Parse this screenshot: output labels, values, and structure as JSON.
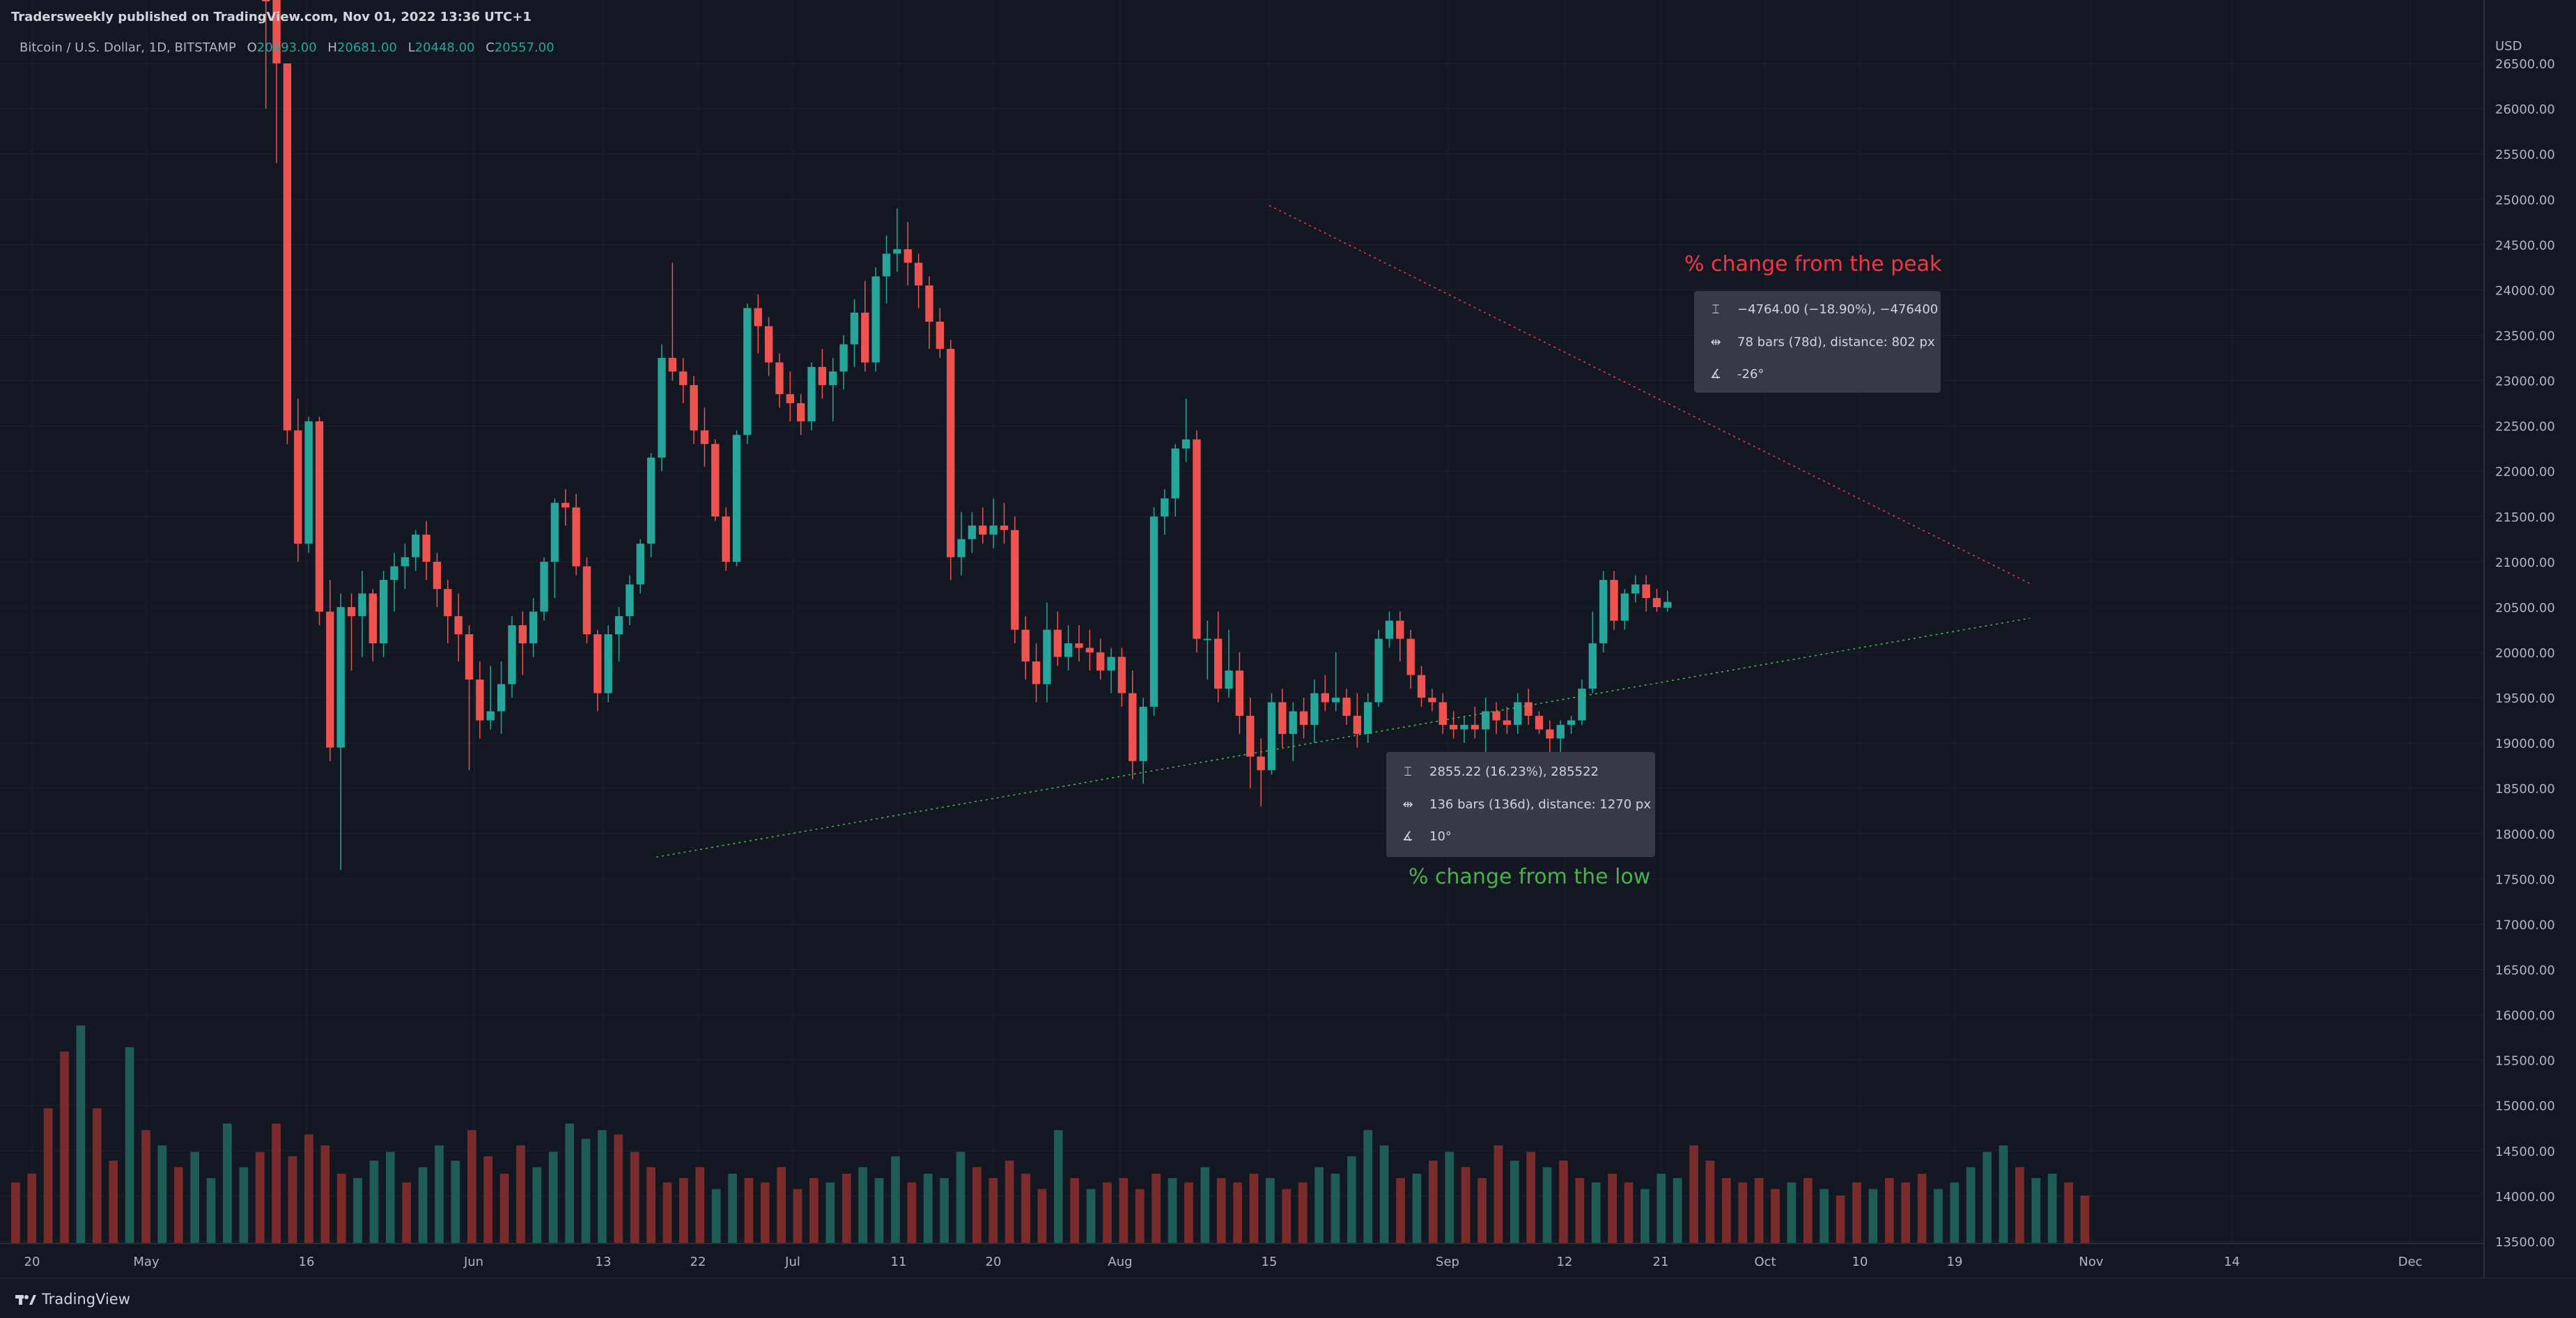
{
  "header": {
    "published": "Tradersweekly published on TradingView.com, Nov 01, 2022 13:36 UTC+1"
  },
  "legend": {
    "symbol": "Bitcoin / U.S. Dollar, 1D, BITSTAMP",
    "o_label": "O",
    "o": "20493.00",
    "h_label": "H",
    "h": "20681.00",
    "l_label": "L",
    "l": "20448.00",
    "c_label": "C",
    "c": "20557.00"
  },
  "annotations": {
    "peak_label": "% change from the peak",
    "low_label": "% change from the low",
    "peak_tooltip": [
      "−4764.00 (−18.90%), −476400",
      "78 bars (78d), distance: 802 px",
      "-26°"
    ],
    "low_tooltip": [
      "2855.22 (16.23%), 285522",
      "136 bars (136d), distance: 1270 px",
      "10°"
    ]
  },
  "colors": {
    "up": "#26a69a",
    "down": "#ef5350",
    "peak_note": "#f23645",
    "low_note": "#4caf50",
    "background": "#131722"
  },
  "footer": {
    "brand": "TradingView"
  },
  "chart_data": {
    "type": "candlestick",
    "symbol": "Bitcoin / U.S. Dollar",
    "interval": "1D",
    "exchange": "BITSTAMP",
    "currency": "USD",
    "ylim": [
      13100,
      27200
    ],
    "y_ticks": [
      "26500.00",
      "26000.00",
      "25500.00",
      "25000.00",
      "24500.00",
      "24000.00",
      "23500.00",
      "23000.00",
      "22500.00",
      "22000.00",
      "21500.00",
      "21000.00",
      "20500.00",
      "20000.00",
      "19500.00",
      "19000.00",
      "18500.00",
      "18000.00",
      "17500.00",
      "17000.00",
      "16500.00",
      "16000.00",
      "15500.00",
      "15000.00",
      "14500.00",
      "14000.00",
      "13500.00"
    ],
    "x_ticks": [
      "20",
      "May",
      "16",
      "Jun",
      "13",
      "22",
      "Jul",
      "11",
      "20",
      "Aug",
      "15",
      "Sep",
      "12",
      "21",
      "Oct",
      "10",
      "19",
      "Nov",
      "14",
      "Dec"
    ],
    "start_date": "2022-05-11",
    "candles": [
      [
        28800,
        28800,
        26000,
        27800
      ],
      [
        28800,
        28800,
        25400,
        26500
      ],
      [
        26500,
        26500,
        22300,
        22450
      ],
      [
        22450,
        22800,
        21000,
        21200
      ],
      [
        21200,
        22600,
        21100,
        22550
      ],
      [
        22550,
        22600,
        20300,
        20450
      ],
      [
        20450,
        20800,
        18800,
        18950
      ],
      [
        18950,
        20650,
        17600,
        20500
      ],
      [
        20500,
        20650,
        19800,
        20400
      ],
      [
        20400,
        20900,
        19950,
        20650
      ],
      [
        20650,
        20700,
        19900,
        20100
      ],
      [
        20100,
        20900,
        19950,
        20800
      ],
      [
        20800,
        21100,
        20450,
        20950
      ],
      [
        20950,
        21200,
        20700,
        21050
      ],
      [
        21050,
        21350,
        20900,
        21300
      ],
      [
        21300,
        21450,
        20800,
        21000
      ],
      [
        21000,
        21100,
        20500,
        20700
      ],
      [
        20700,
        20800,
        20100,
        20400
      ],
      [
        20400,
        20650,
        19900,
        20200
      ],
      [
        20200,
        20300,
        18700,
        19700
      ],
      [
        19700,
        19900,
        19050,
        19250
      ],
      [
        19250,
        19850,
        19150,
        19350
      ],
      [
        19350,
        19900,
        19100,
        19650
      ],
      [
        19650,
        20400,
        19500,
        20300
      ],
      [
        20300,
        20450,
        19750,
        20100
      ],
      [
        20100,
        20600,
        19950,
        20450
      ],
      [
        20450,
        21050,
        20350,
        21000
      ],
      [
        21000,
        21700,
        20600,
        21650
      ],
      [
        21650,
        21800,
        21400,
        21600
      ],
      [
        21600,
        21750,
        20850,
        20950
      ],
      [
        20950,
        21050,
        20100,
        20200
      ],
      [
        20200,
        20250,
        19350,
        19550
      ],
      [
        19550,
        20300,
        19450,
        20200
      ],
      [
        20200,
        20500,
        19900,
        20400
      ],
      [
        20400,
        20850,
        20300,
        20750
      ],
      [
        20750,
        21250,
        20650,
        21200
      ],
      [
        21200,
        22200,
        21050,
        22150
      ],
      [
        22150,
        23400,
        22000,
        23250
      ],
      [
        23250,
        24300,
        23000,
        23100
      ],
      [
        23100,
        23250,
        22750,
        22950
      ],
      [
        22950,
        23050,
        22300,
        22450
      ],
      [
        22450,
        22700,
        22050,
        22300
      ],
      [
        22300,
        22350,
        21450,
        21500
      ],
      [
        21500,
        21600,
        20900,
        21000
      ],
      [
        21000,
        22450,
        20950,
        22400
      ],
      [
        22400,
        23850,
        22300,
        23800
      ],
      [
        23800,
        23950,
        23300,
        23600
      ],
      [
        23600,
        23700,
        23050,
        23200
      ],
      [
        23200,
        23300,
        22700,
        22850
      ],
      [
        22850,
        23100,
        22550,
        22750
      ],
      [
        22750,
        22850,
        22400,
        22550
      ],
      [
        22550,
        23200,
        22450,
        23150
      ],
      [
        23150,
        23350,
        22800,
        22950
      ],
      [
        22950,
        23250,
        22550,
        23100
      ],
      [
        23100,
        23500,
        22900,
        23400
      ],
      [
        23400,
        23900,
        23150,
        23750
      ],
      [
        23750,
        24100,
        23100,
        23200
      ],
      [
        23200,
        24250,
        23100,
        24150
      ],
      [
        24150,
        24600,
        23850,
        24400
      ],
      [
        24400,
        24900,
        24200,
        24450
      ],
      [
        24450,
        24750,
        24050,
        24300
      ],
      [
        24300,
        24400,
        23800,
        24050
      ],
      [
        24050,
        24150,
        23350,
        23650
      ],
      [
        23650,
        23800,
        23250,
        23350
      ],
      [
        23350,
        23450,
        20800,
        21050
      ],
      [
        21050,
        21550,
        20850,
        21250
      ],
      [
        21250,
        21550,
        21100,
        21400
      ],
      [
        21400,
        21600,
        21200,
        21300
      ],
      [
        21300,
        21700,
        21150,
        21400
      ],
      [
        21400,
        21650,
        21200,
        21350
      ],
      [
        21350,
        21500,
        20100,
        20250
      ],
      [
        20250,
        20400,
        19700,
        19900
      ],
      [
        19900,
        20100,
        19450,
        19650
      ],
      [
        19650,
        20550,
        19450,
        20250
      ],
      [
        20250,
        20450,
        19850,
        19950
      ],
      [
        19950,
        20300,
        19800,
        20100
      ],
      [
        20100,
        20300,
        19900,
        20050
      ],
      [
        20050,
        20250,
        19800,
        20000
      ],
      [
        20000,
        20150,
        19700,
        19800
      ],
      [
        19800,
        20050,
        19550,
        19950
      ],
      [
        19950,
        20050,
        19400,
        19550
      ],
      [
        19550,
        19800,
        18600,
        18800
      ],
      [
        18800,
        19500,
        18550,
        19400
      ],
      [
        19400,
        21600,
        19300,
        21500
      ],
      [
        21500,
        21800,
        21300,
        21700
      ],
      [
        21700,
        22300,
        21500,
        22250
      ],
      [
        22250,
        22800,
        22100,
        22350
      ],
      [
        22350,
        22450,
        20000,
        20150
      ],
      [
        20150,
        20350,
        19700,
        20150
      ],
      [
        20150,
        20450,
        19450,
        19600
      ],
      [
        19600,
        20250,
        19500,
        19800
      ],
      [
        19800,
        20000,
        19100,
        19300
      ],
      [
        19300,
        19500,
        18500,
        18850
      ],
      [
        18850,
        19050,
        18300,
        18700
      ],
      [
        18700,
        19550,
        18650,
        19450
      ],
      [
        19450,
        19600,
        18950,
        19100
      ],
      [
        19100,
        19450,
        18800,
        19350
      ],
      [
        19350,
        19500,
        19050,
        19200
      ],
      [
        19200,
        19700,
        19000,
        19550
      ],
      [
        19550,
        19750,
        19350,
        19450
      ],
      [
        19450,
        20000,
        19350,
        19500
      ],
      [
        19500,
        19600,
        19200,
        19300
      ],
      [
        19300,
        19550,
        18950,
        19100
      ],
      [
        19100,
        19550,
        19000,
        19450
      ],
      [
        19450,
        20250,
        19400,
        20150
      ],
      [
        20150,
        20450,
        20050,
        20350
      ],
      [
        20350,
        20450,
        19900,
        20150
      ],
      [
        20150,
        20250,
        19600,
        19750
      ],
      [
        19750,
        19850,
        19400,
        19500
      ],
      [
        19500,
        19600,
        19350,
        19450
      ],
      [
        19450,
        19550,
        19100,
        19200
      ],
      [
        19200,
        19350,
        19050,
        19150
      ],
      [
        19150,
        19300,
        19000,
        19200
      ],
      [
        19200,
        19400,
        19050,
        19150
      ],
      [
        19150,
        19500,
        18250,
        19350
      ],
      [
        19350,
        19450,
        19100,
        19250
      ],
      [
        19250,
        19400,
        19100,
        19200
      ],
      [
        19200,
        19550,
        19100,
        19450
      ],
      [
        19450,
        19600,
        19200,
        19300
      ],
      [
        19300,
        19350,
        19100,
        19150
      ],
      [
        19150,
        19250,
        18800,
        19050
      ],
      [
        19050,
        19250,
        18700,
        19200
      ],
      [
        19200,
        19300,
        19100,
        19250
      ],
      [
        19250,
        19700,
        19200,
        19600
      ],
      [
        19600,
        20450,
        19550,
        20100
      ],
      [
        20100,
        20900,
        20000,
        20800
      ],
      [
        20800,
        20900,
        20250,
        20350
      ],
      [
        20350,
        20700,
        20250,
        20650
      ],
      [
        20650,
        20850,
        20550,
        20750
      ],
      [
        20750,
        20850,
        20450,
        20600
      ],
      [
        20600,
        20700,
        20450,
        20500
      ],
      [
        20493,
        20681,
        20448,
        20557
      ]
    ],
    "volume_relative": [
      0.28,
      0.32,
      0.62,
      0.88,
      1.0,
      0.62,
      0.38,
      0.9,
      0.52,
      0.45,
      0.35,
      0.42,
      0.3,
      0.55,
      0.35,
      0.42,
      0.55,
      0.4,
      0.5,
      0.45,
      0.32,
      0.3,
      0.38,
      0.42,
      0.28,
      0.35,
      0.45,
      0.38,
      0.52,
      0.4,
      0.32,
      0.45,
      0.35,
      0.42,
      0.55,
      0.48,
      0.52,
      0.5,
      0.42,
      0.35,
      0.28,
      0.3,
      0.35,
      0.25,
      0.32,
      0.3,
      0.28,
      0.35,
      0.25,
      0.3,
      0.28,
      0.32,
      0.35,
      0.3,
      0.4,
      0.28,
      0.32,
      0.3,
      0.42,
      0.35,
      0.3,
      0.38,
      0.32,
      0.25,
      0.52,
      0.3,
      0.25,
      0.28,
      0.3,
      0.25,
      0.32,
      0.3,
      0.28,
      0.35,
      0.3,
      0.28,
      0.32,
      0.3,
      0.25,
      0.28,
      0.35,
      0.32,
      0.4,
      0.52,
      0.45,
      0.3,
      0.32,
      0.38,
      0.42,
      0.35,
      0.3,
      0.45,
      0.38,
      0.42,
      0.35,
      0.38,
      0.3,
      0.28,
      0.32,
      0.28,
      0.25,
      0.32,
      0.3,
      0.45,
      0.38,
      0.3,
      0.28,
      0.3,
      0.25,
      0.28,
      0.3,
      0.25,
      0.22,
      0.28,
      0.25,
      0.3,
      0.28,
      0.32,
      0.25,
      0.28,
      0.35,
      0.42,
      0.45,
      0.35,
      0.3,
      0.32,
      0.28,
      0.22
    ]
  }
}
